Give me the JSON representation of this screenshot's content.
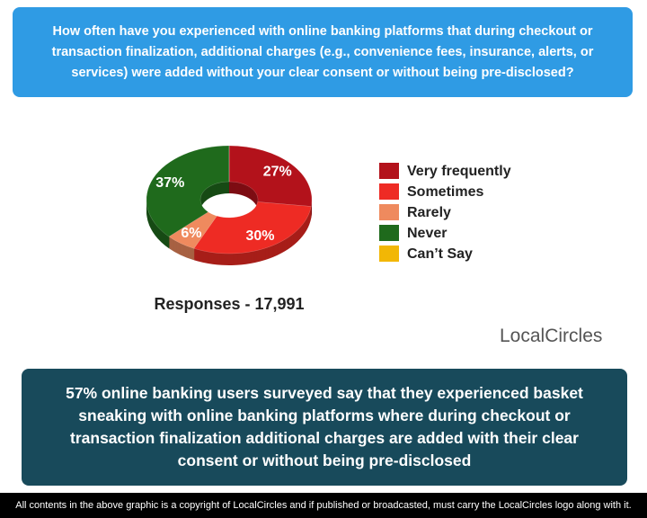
{
  "chart_data": {
    "type": "pie",
    "donut": true,
    "title": "How often have you experienced with online banking platforms that during checkout or transaction finalization, additional charges (e.g., convenience fees, insurance, alerts, or services) were added without your clear consent or without being pre-disclosed?",
    "subtitle": "Responses - 17,991",
    "categories": [
      "Very frequently",
      "Sometimes",
      "Rarely",
      "Never",
      "Can’t Say"
    ],
    "values": [
      27,
      30,
      6,
      37,
      0
    ],
    "value_labels": [
      "27%",
      "30%",
      "6%",
      "37%",
      null
    ],
    "colors": [
      "#b3121b",
      "#ee2b24",
      "#ef8a5e",
      "#1f6a1c",
      "#f2b705"
    ],
    "legend": "right",
    "annotations": [
      "57% online banking users surveyed say that they experienced basket sneaking with online banking platforms where during checkout or transaction finalization additional charges are added with their clear consent or without being pre-disclosed",
      "All contents in the above graphic is a copyright of LocalCircles and if published or broadcasted, must carry the LocalCircles logo along with it.",
      "LocalCircles"
    ]
  }
}
